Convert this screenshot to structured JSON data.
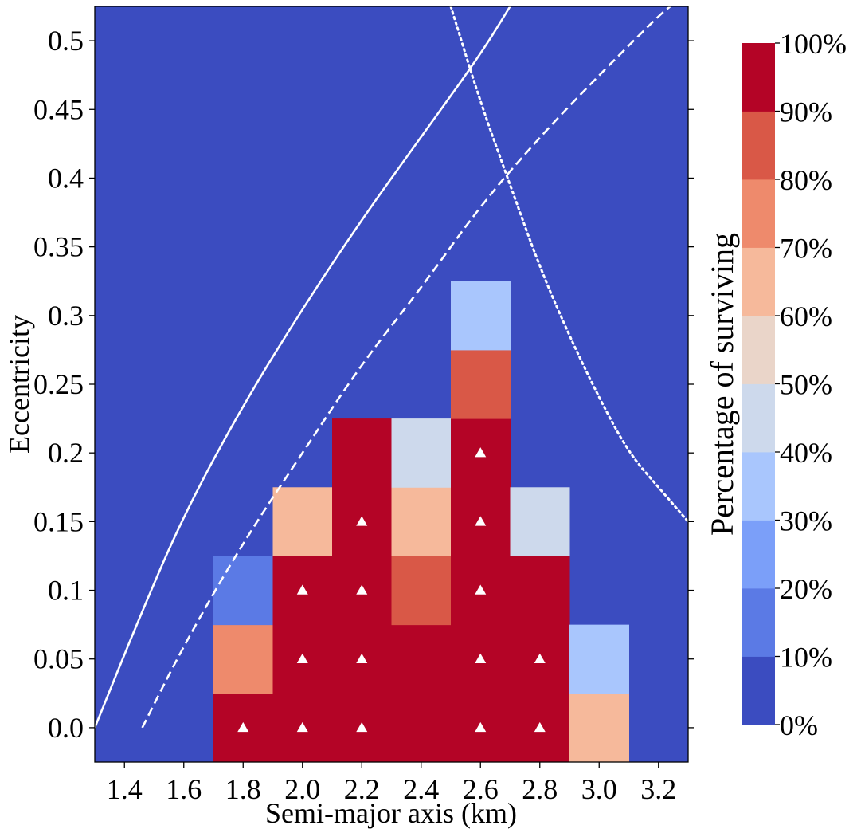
{
  "chart_data": {
    "type": "heatmap",
    "xlabel": "Semi-major axis (km)",
    "ylabel": "Eccentricity",
    "colorbar_label": "Percentage of surviving",
    "xlim": [
      1.3,
      3.3
    ],
    "ylim": [
      -0.025,
      0.525
    ],
    "x_ticks": [
      "1.4",
      "1.6",
      "1.8",
      "2.0",
      "2.2",
      "2.4",
      "2.6",
      "2.8",
      "3.0",
      "3.2"
    ],
    "y_ticks": [
      "0.0",
      "0.05",
      "0.1",
      "0.15",
      "0.2",
      "0.25",
      "0.3",
      "0.35",
      "0.4",
      "0.45",
      "0.5"
    ],
    "colorbar_ticks": [
      "0%",
      "10%",
      "20%",
      "30%",
      "40%",
      "50%",
      "60%",
      "70%",
      "80%",
      "90%",
      "100%"
    ],
    "colorbar_colors": [
      "#3b4cc0",
      "#5b7ae5",
      "#7b9ff9",
      "#a9c6fd",
      "#cdd9ec",
      "#ead5c9",
      "#f6b99b",
      "#ee8a6c",
      "#d95847",
      "#b40426"
    ],
    "cell_width_km": 0.2,
    "cell_height_ecc": 0.05,
    "cells": [
      {
        "a": 1.8,
        "e": 0.0,
        "pct": 100,
        "marker": true
      },
      {
        "a": 1.8,
        "e": 0.05,
        "pct": 75,
        "marker": false
      },
      {
        "a": 1.8,
        "e": 0.1,
        "pct": 15,
        "marker": false
      },
      {
        "a": 2.0,
        "e": 0.0,
        "pct": 100,
        "marker": true
      },
      {
        "a": 2.0,
        "e": 0.05,
        "pct": 100,
        "marker": true
      },
      {
        "a": 2.0,
        "e": 0.1,
        "pct": 100,
        "marker": true
      },
      {
        "a": 2.0,
        "e": 0.15,
        "pct": 65,
        "marker": false
      },
      {
        "a": 2.2,
        "e": 0.0,
        "pct": 100,
        "marker": true
      },
      {
        "a": 2.2,
        "e": 0.05,
        "pct": 100,
        "marker": true
      },
      {
        "a": 2.2,
        "e": 0.1,
        "pct": 100,
        "marker": true
      },
      {
        "a": 2.2,
        "e": 0.15,
        "pct": 100,
        "marker": true
      },
      {
        "a": 2.2,
        "e": 0.2,
        "pct": 95,
        "marker": false
      },
      {
        "a": 2.4,
        "e": 0.0,
        "pct": 95,
        "marker": false
      },
      {
        "a": 2.4,
        "e": 0.05,
        "pct": 95,
        "marker": false
      },
      {
        "a": 2.4,
        "e": 0.1,
        "pct": 85,
        "marker": false
      },
      {
        "a": 2.4,
        "e": 0.15,
        "pct": 65,
        "marker": false
      },
      {
        "a": 2.4,
        "e": 0.2,
        "pct": 45,
        "marker": false
      },
      {
        "a": 2.6,
        "e": 0.0,
        "pct": 100,
        "marker": true
      },
      {
        "a": 2.6,
        "e": 0.05,
        "pct": 100,
        "marker": true
      },
      {
        "a": 2.6,
        "e": 0.1,
        "pct": 100,
        "marker": true
      },
      {
        "a": 2.6,
        "e": 0.15,
        "pct": 100,
        "marker": true
      },
      {
        "a": 2.6,
        "e": 0.2,
        "pct": 100,
        "marker": true
      },
      {
        "a": 2.6,
        "e": 0.25,
        "pct": 85,
        "marker": false
      },
      {
        "a": 2.6,
        "e": 0.3,
        "pct": 35,
        "marker": false
      },
      {
        "a": 2.8,
        "e": 0.0,
        "pct": 100,
        "marker": true
      },
      {
        "a": 2.8,
        "e": 0.05,
        "pct": 100,
        "marker": true
      },
      {
        "a": 2.8,
        "e": 0.1,
        "pct": 95,
        "marker": false
      },
      {
        "a": 2.8,
        "e": 0.15,
        "pct": 45,
        "marker": false
      },
      {
        "a": 3.0,
        "e": 0.0,
        "pct": 65,
        "marker": false
      },
      {
        "a": 3.0,
        "e": 0.05,
        "pct": 35,
        "marker": false
      }
    ],
    "curves": [
      {
        "name": "solid",
        "style": "solid",
        "points": [
          [
            1.3,
            0.0
          ],
          [
            1.45,
            0.08
          ],
          [
            1.6,
            0.155
          ],
          [
            1.8,
            0.235
          ],
          [
            2.0,
            0.305
          ],
          [
            2.2,
            0.37
          ],
          [
            2.4,
            0.43
          ],
          [
            2.6,
            0.49
          ],
          [
            2.7,
            0.525
          ]
        ]
      },
      {
        "name": "dashed",
        "style": "dashed",
        "points": [
          [
            1.46,
            0.0
          ],
          [
            1.6,
            0.06
          ],
          [
            1.8,
            0.135
          ],
          [
            2.0,
            0.2
          ],
          [
            2.2,
            0.265
          ],
          [
            2.4,
            0.32
          ],
          [
            2.6,
            0.38
          ],
          [
            2.8,
            0.43
          ],
          [
            3.0,
            0.475
          ],
          [
            3.2,
            0.518
          ],
          [
            3.24,
            0.525
          ]
        ]
      },
      {
        "name": "dotted",
        "style": "dotted",
        "points": [
          [
            2.5,
            0.525
          ],
          [
            2.6,
            0.455
          ],
          [
            2.7,
            0.395
          ],
          [
            2.8,
            0.335
          ],
          [
            2.9,
            0.285
          ],
          [
            3.0,
            0.24
          ],
          [
            3.1,
            0.2
          ],
          [
            3.2,
            0.175
          ],
          [
            3.3,
            0.15
          ]
        ]
      }
    ]
  }
}
